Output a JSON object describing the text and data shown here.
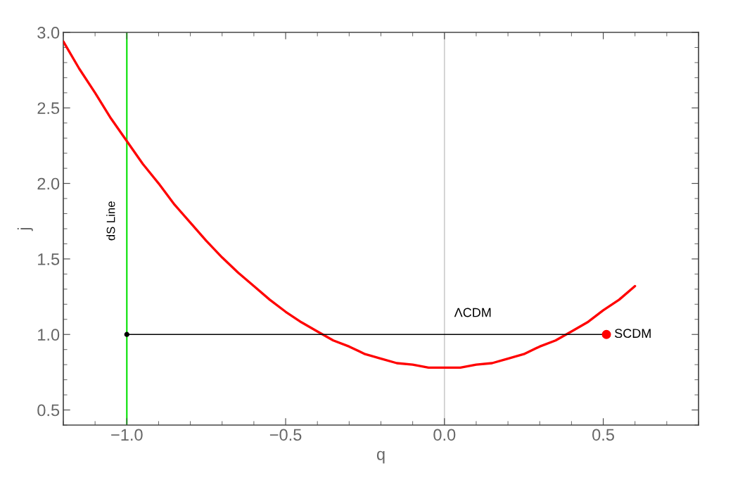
{
  "chart_data": {
    "type": "line",
    "xlabel": "q",
    "ylabel": "j",
    "xlim": [
      -1.2,
      0.8
    ],
    "ylim": [
      0.4,
      3.0
    ],
    "xticks": [
      {
        "value": -1.0,
        "label": "−1.0"
      },
      {
        "value": -0.5,
        "label": "−0.5"
      },
      {
        "value": 0.0,
        "label": "0.0"
      },
      {
        "value": 0.5,
        "label": "0.5"
      }
    ],
    "yticks": [
      {
        "value": 0.5,
        "label": "0.5"
      },
      {
        "value": 1.0,
        "label": "1.0"
      },
      {
        "value": 1.5,
        "label": "1.5"
      },
      {
        "value": 2.0,
        "label": "2.0"
      },
      {
        "value": 2.5,
        "label": "2.5"
      },
      {
        "value": 3.0,
        "label": "3.0"
      }
    ],
    "grid": false,
    "legend": false,
    "series": [
      {
        "color": "#ff0000",
        "x": [
          -1.2,
          -1.15,
          -1.1,
          -1.05,
          -1.0,
          -0.95,
          -0.9,
          -0.85,
          -0.8,
          -0.75,
          -0.7,
          -0.65,
          -0.6,
          -0.55,
          -0.5,
          -0.45,
          -0.4,
          -0.35,
          -0.3,
          -0.25,
          -0.2,
          -0.15,
          -0.1,
          -0.05,
          0.0,
          0.05,
          0.1,
          0.15,
          0.2,
          0.25,
          0.3,
          0.35,
          0.4,
          0.45,
          0.5,
          0.55,
          0.6
        ],
        "values": [
          2.94,
          2.76,
          2.6,
          2.43,
          2.28,
          2.13,
          2.0,
          1.86,
          1.74,
          1.62,
          1.51,
          1.41,
          1.32,
          1.23,
          1.15,
          1.08,
          1.02,
          0.96,
          0.92,
          0.87,
          0.84,
          0.81,
          0.8,
          0.78,
          0.78,
          0.78,
          0.8,
          0.81,
          0.84,
          0.87,
          0.92,
          0.96,
          1.02,
          1.08,
          1.16,
          1.23,
          1.32
        ]
      },
      {
        "color": "#000000",
        "x": [
          -1.0,
          0.51
        ],
        "values": [
          1.0,
          1.0
        ]
      },
      {
        "type": "scatter",
        "color": "#000000",
        "marker": "circle",
        "x": [
          -1.0
        ],
        "values": [
          1.0
        ]
      },
      {
        "type": "scatter",
        "name": "SCDM",
        "color": "#ff0000",
        "marker": "circle",
        "x": [
          0.51
        ],
        "values": [
          1.0
        ]
      }
    ],
    "ref_lines": [
      {
        "axis": "x",
        "value": -1.0,
        "label": "dS Line",
        "color": "#00e000"
      },
      {
        "axis": "x",
        "value": 0.0,
        "color": "#cccccc"
      }
    ],
    "annotations": [
      {
        "text": "ΛCDM",
        "x": 0.0,
        "y": 1.0
      }
    ]
  }
}
